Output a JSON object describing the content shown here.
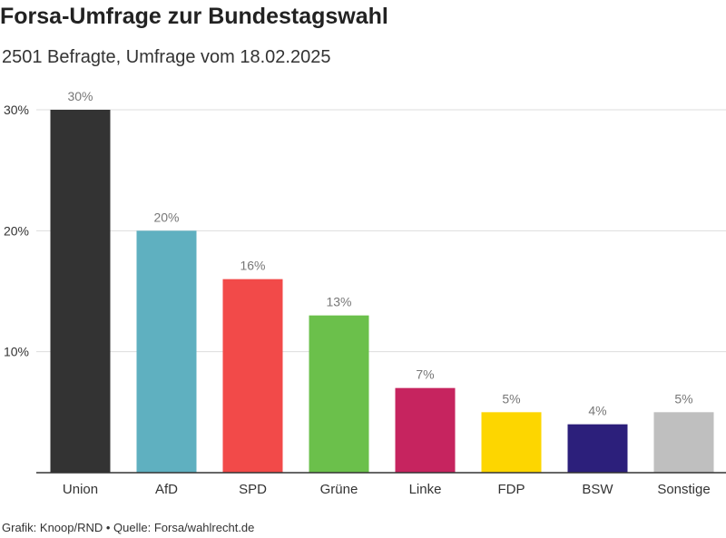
{
  "title": "Forsa-Umfrage zur Bundestagswahl",
  "subtitle": "2501 Befragte, Umfrage vom 18.02.2025",
  "footer": "Grafik: Knoop/RND • Quelle: Forsa/wahlrecht.de",
  "chart_data": {
    "type": "bar",
    "title": "Forsa-Umfrage zur Bundestagswahl",
    "subtitle": "2501 Befragte, Umfrage vom 18.02.2025",
    "categories": [
      "Union",
      "AfD",
      "SPD",
      "Grüne",
      "Linke",
      "FDP",
      "BSW",
      "Sonstige"
    ],
    "values": [
      30,
      20,
      16,
      13,
      7,
      5,
      4,
      5
    ],
    "value_labels": [
      "30%",
      "20%",
      "16%",
      "13%",
      "7%",
      "5%",
      "4%",
      "5%"
    ],
    "colors": [
      "#333333",
      "#5fb0c0",
      "#f24a49",
      "#6bc04b",
      "#c6245f",
      "#fdd600",
      "#2c1f7b",
      "#bfbfbf"
    ],
    "yticks": [
      10,
      20,
      30
    ],
    "ytick_labels": [
      "10%",
      "20%",
      "30%"
    ],
    "ylim": [
      0,
      30
    ],
    "xlabel": "",
    "ylabel": "",
    "grid": true
  }
}
